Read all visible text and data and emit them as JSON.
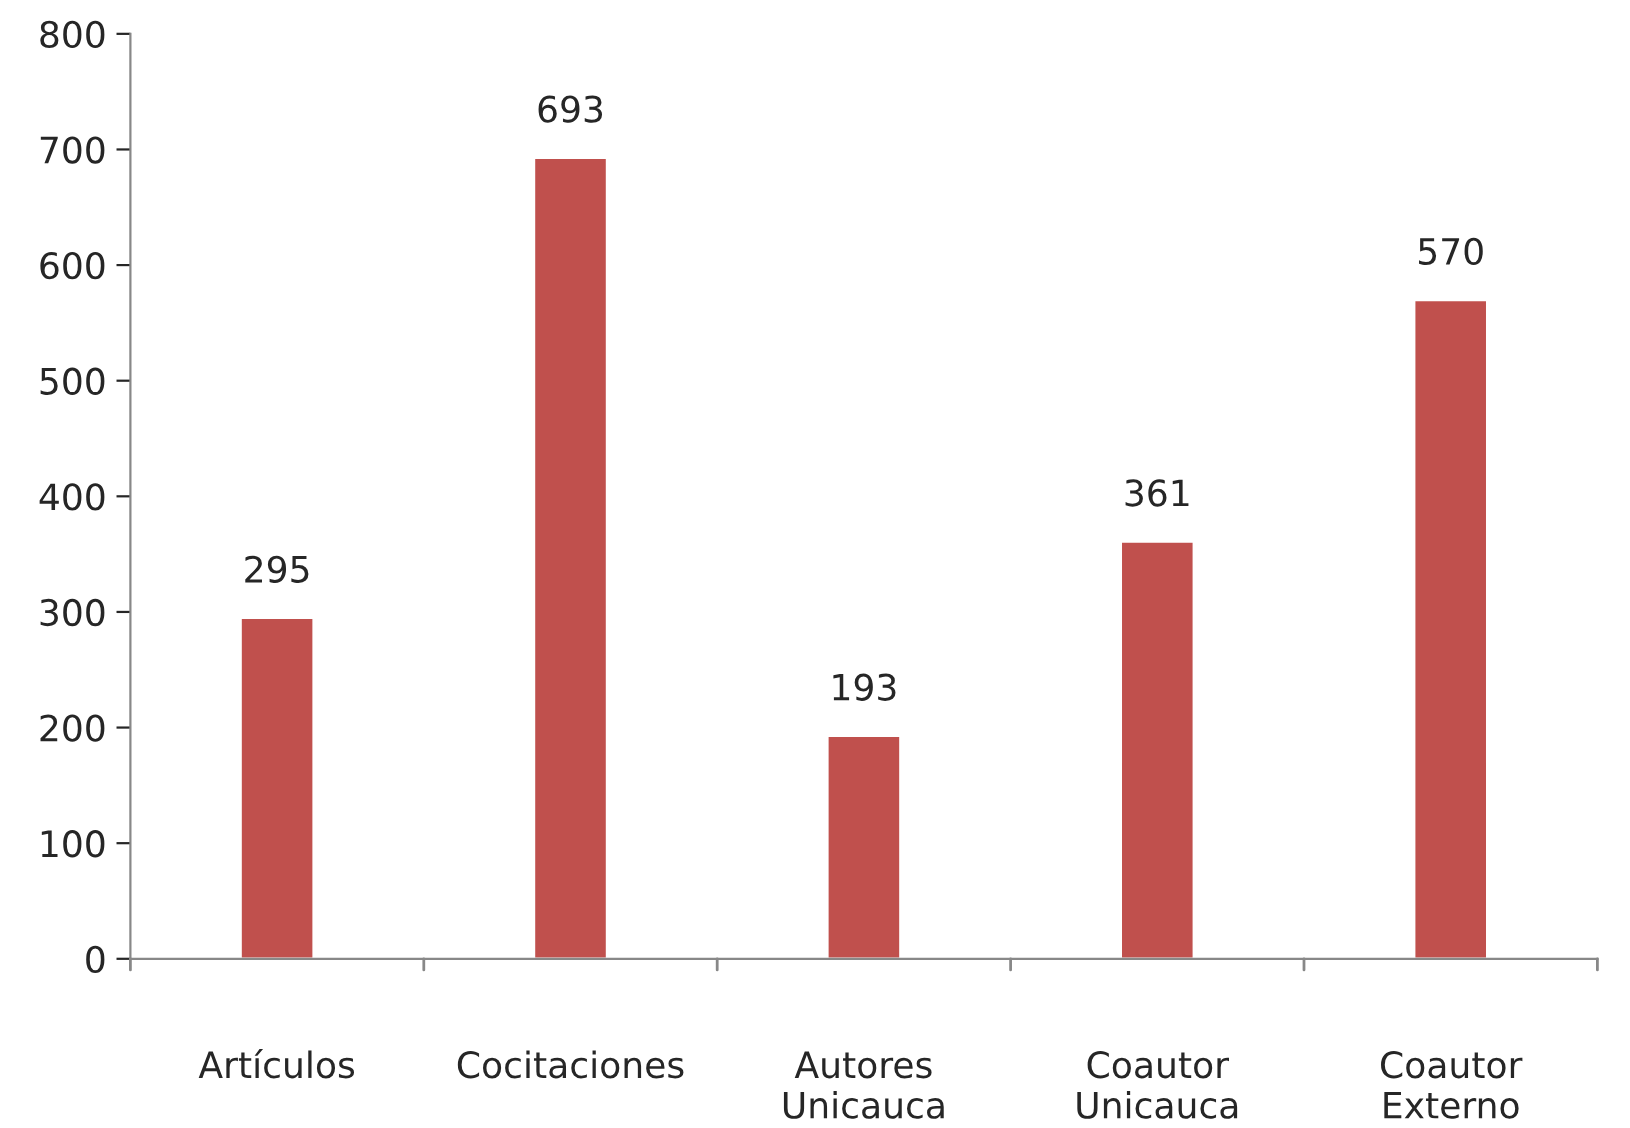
{
  "chart_data": {
    "type": "bar",
    "categories": [
      "Artículos",
      "Cocitaciones",
      "Autores\nUnicauca",
      "Coautor\nUnicauca",
      "Coautor\nExterno"
    ],
    "values": [
      295,
      693,
      193,
      361,
      570
    ],
    "color": "#c0504d",
    "ylim": [
      0,
      800
    ],
    "yticks": [
      0,
      100,
      200,
      300,
      400,
      500,
      600,
      700,
      800
    ],
    "data_labels": true,
    "grid": false,
    "legend": false
  }
}
